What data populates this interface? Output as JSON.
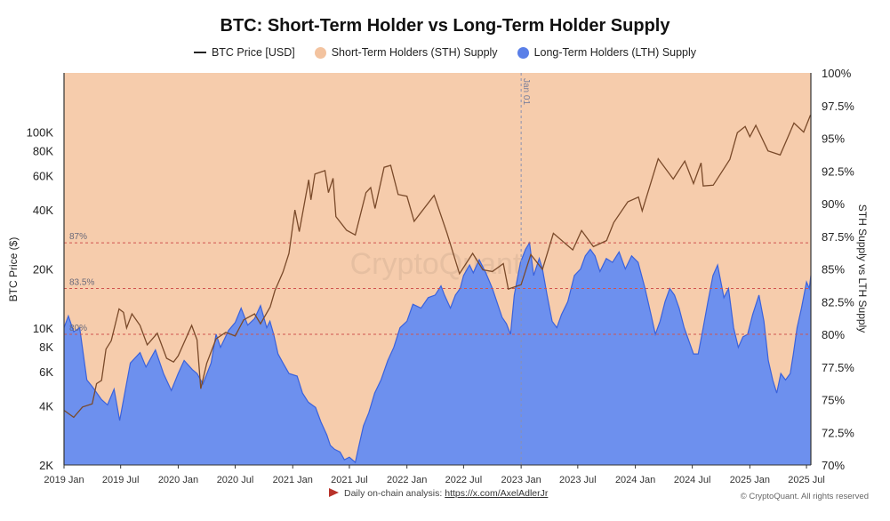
{
  "chart_data": {
    "type": "area",
    "title": "BTC: Short-Term Holder vs Long-Term Holder Supply",
    "y_left_label": "BTC Price ($)",
    "y_right_label": "STH Supply vs LTH Supply",
    "y_left_scale": "log",
    "y_left_range": [
      2000,
      200000
    ],
    "y_left_ticks": [
      {
        "v": 2000,
        "label": "2K"
      },
      {
        "v": 4000,
        "label": "4K"
      },
      {
        "v": 6000,
        "label": "6K"
      },
      {
        "v": 8000,
        "label": "8K"
      },
      {
        "v": 10000,
        "label": "10K"
      },
      {
        "v": 20000,
        "label": "20K"
      },
      {
        "v": 40000,
        "label": "40K"
      },
      {
        "v": 60000,
        "label": "60K"
      },
      {
        "v": 80000,
        "label": "80K"
      },
      {
        "v": 100000,
        "label": "100K"
      }
    ],
    "y_right_range": [
      70,
      100
    ],
    "y_right_ticks": [
      {
        "v": 70,
        "label": "70%"
      },
      {
        "v": 72.5,
        "label": "72.5%"
      },
      {
        "v": 75,
        "label": "75%"
      },
      {
        "v": 77.5,
        "label": "77.5%"
      },
      {
        "v": 80,
        "label": "80%"
      },
      {
        "v": 82.5,
        "label": "82.5%"
      },
      {
        "v": 85,
        "label": "85%"
      },
      {
        "v": 87.5,
        "label": "87.5%"
      },
      {
        "v": 90,
        "label": "90%"
      },
      {
        "v": 92.5,
        "label": "92.5%"
      },
      {
        "v": 95,
        "label": "95%"
      },
      {
        "v": 97.5,
        "label": "97.5%"
      },
      {
        "v": 100,
        "label": "100%"
      }
    ],
    "x_range": [
      "2019-01-01",
      "2025-07-15"
    ],
    "x_ticks": [
      {
        "date": "2019-01-01",
        "label": "2019 Jan"
      },
      {
        "date": "2019-07-01",
        "label": "2019 Jul"
      },
      {
        "date": "2020-01-01",
        "label": "2020 Jan"
      },
      {
        "date": "2020-07-01",
        "label": "2020 Jul"
      },
      {
        "date": "2021-01-01",
        "label": "2021 Jan"
      },
      {
        "date": "2021-07-01",
        "label": "2021 Jul"
      },
      {
        "date": "2022-01-01",
        "label": "2022 Jan"
      },
      {
        "date": "2022-07-01",
        "label": "2022 Jul"
      },
      {
        "date": "2023-01-01",
        "label": "2023 Jan"
      },
      {
        "date": "2023-07-01",
        "label": "2023 Jul"
      },
      {
        "date": "2024-01-01",
        "label": "2024 Jan"
      },
      {
        "date": "2024-07-01",
        "label": "2024 Jul"
      },
      {
        "date": "2025-01-01",
        "label": "2025 Jan"
      },
      {
        "date": "2025-07-01",
        "label": "2025 Jul"
      }
    ],
    "reference_lines": [
      {
        "v": 87,
        "label": "87%"
      },
      {
        "v": 83.5,
        "label": "83.5%"
      },
      {
        "v": 80,
        "label": "80%"
      }
    ],
    "vertical_marker": {
      "date": "2023-01-01",
      "label": "Jan 01"
    },
    "series": [
      {
        "name": "BTC Price [USD]",
        "axis": "left",
        "style": "line",
        "color": "#222222",
        "points": [
          [
            "2019-01-01",
            3800
          ],
          [
            "2019-02-01",
            3500
          ],
          [
            "2019-03-01",
            3950
          ],
          [
            "2019-04-01",
            4100
          ],
          [
            "2019-04-15",
            5200
          ],
          [
            "2019-05-01",
            5400
          ],
          [
            "2019-05-15",
            7800
          ],
          [
            "2019-06-01",
            8600
          ],
          [
            "2019-06-26",
            12500
          ],
          [
            "2019-07-10",
            12000
          ],
          [
            "2019-07-20",
            10000
          ],
          [
            "2019-08-06",
            11800
          ],
          [
            "2019-09-01",
            10300
          ],
          [
            "2019-09-24",
            8200
          ],
          [
            "2019-10-26",
            9400
          ],
          [
            "2019-11-25",
            7000
          ],
          [
            "2019-12-17",
            6700
          ],
          [
            "2020-01-01",
            7200
          ],
          [
            "2020-02-13",
            10300
          ],
          [
            "2020-03-01",
            8700
          ],
          [
            "2020-03-13",
            4900
          ],
          [
            "2020-04-01",
            6600
          ],
          [
            "2020-05-01",
            8800
          ],
          [
            "2020-06-01",
            9500
          ],
          [
            "2020-07-01",
            9100
          ],
          [
            "2020-07-28",
            11000
          ],
          [
            "2020-09-01",
            11800
          ],
          [
            "2020-09-20",
            10500
          ],
          [
            "2020-10-21",
            12800
          ],
          [
            "2020-11-05",
            15500
          ],
          [
            "2020-12-01",
            19300
          ],
          [
            "2020-12-20",
            24000
          ],
          [
            "2021-01-08",
            40000
          ],
          [
            "2021-01-22",
            31000
          ],
          [
            "2021-02-21",
            57000
          ],
          [
            "2021-02-28",
            45000
          ],
          [
            "2021-03-13",
            61000
          ],
          [
            "2021-04-14",
            63500
          ],
          [
            "2021-04-25",
            49000
          ],
          [
            "2021-05-10",
            58000
          ],
          [
            "2021-05-19",
            37000
          ],
          [
            "2021-06-22",
            31500
          ],
          [
            "2021-07-20",
            29800
          ],
          [
            "2021-08-23",
            49000
          ],
          [
            "2021-09-07",
            52000
          ],
          [
            "2021-09-21",
            40700
          ],
          [
            "2021-10-20",
            66000
          ],
          [
            "2021-11-10",
            67500
          ],
          [
            "2021-12-04",
            48000
          ],
          [
            "2022-01-01",
            47000
          ],
          [
            "2022-01-24",
            35000
          ],
          [
            "2022-03-29",
            47500
          ],
          [
            "2022-05-09",
            30500
          ],
          [
            "2022-06-18",
            18900
          ],
          [
            "2022-07-30",
            24000
          ],
          [
            "2022-09-01",
            19800
          ],
          [
            "2022-10-01",
            19400
          ],
          [
            "2022-11-05",
            21300
          ],
          [
            "2022-11-21",
            15800
          ],
          [
            "2023-01-01",
            16600
          ],
          [
            "2023-02-01",
            23700
          ],
          [
            "2023-03-10",
            19900
          ],
          [
            "2023-04-14",
            30400
          ],
          [
            "2023-06-15",
            25000
          ],
          [
            "2023-07-13",
            31400
          ],
          [
            "2023-08-20",
            26000
          ],
          [
            "2023-10-01",
            27900
          ],
          [
            "2023-10-24",
            34500
          ],
          [
            "2023-12-08",
            44000
          ],
          [
            "2024-01-11",
            46500
          ],
          [
            "2024-01-23",
            39500
          ],
          [
            "2024-03-14",
            73000
          ],
          [
            "2024-05-01",
            57500
          ],
          [
            "2024-06-07",
            71000
          ],
          [
            "2024-07-05",
            54500
          ],
          [
            "2024-07-29",
            69500
          ],
          [
            "2024-08-05",
            53000
          ],
          [
            "2024-09-06",
            53500
          ],
          [
            "2024-10-29",
            72500
          ],
          [
            "2024-11-22",
            99000
          ],
          [
            "2024-12-17",
            106500
          ],
          [
            "2025-01-01",
            94500
          ],
          [
            "2025-01-20",
            108000
          ],
          [
            "2025-02-28",
            80000
          ],
          [
            "2025-04-08",
            76300
          ],
          [
            "2025-05-22",
            111000
          ],
          [
            "2025-06-22",
            99800
          ],
          [
            "2025-07-14",
            122000
          ]
        ]
      },
      {
        "name": "Short-Term Holders (STH) Supply",
        "axis": "right",
        "style": "area",
        "color": "#f6ccac",
        "fill": "remainder above LTH to 100%"
      },
      {
        "name": "Long-Term Holders (LTH) Supply",
        "axis": "right",
        "style": "area",
        "color": "#5a7fe8",
        "points": [
          [
            "2019-01-01",
            80.5
          ],
          [
            "2019-01-15",
            81.4
          ],
          [
            "2019-02-01",
            80.2
          ],
          [
            "2019-02-20",
            80.5
          ],
          [
            "2019-03-15",
            76.5
          ],
          [
            "2019-04-01",
            76.0
          ],
          [
            "2019-05-01",
            75.0
          ],
          [
            "2019-05-20",
            74.6
          ],
          [
            "2019-06-10",
            75.8
          ],
          [
            "2019-06-28",
            73.4
          ],
          [
            "2019-08-01",
            77.8
          ],
          [
            "2019-09-01",
            78.6
          ],
          [
            "2019-09-20",
            77.5
          ],
          [
            "2019-10-20",
            78.8
          ],
          [
            "2019-11-15",
            77.0
          ],
          [
            "2019-12-10",
            75.7
          ],
          [
            "2020-01-01",
            77.0
          ],
          [
            "2020-01-20",
            78.0
          ],
          [
            "2020-02-15",
            77.3
          ],
          [
            "2020-03-01",
            77.0
          ],
          [
            "2020-03-20",
            76.2
          ],
          [
            "2020-04-15",
            77.8
          ],
          [
            "2020-05-01",
            80.0
          ],
          [
            "2020-05-15",
            79.0
          ],
          [
            "2020-06-10",
            80.3
          ],
          [
            "2020-07-01",
            80.9
          ],
          [
            "2020-07-20",
            82.0
          ],
          [
            "2020-08-10",
            80.7
          ],
          [
            "2020-09-01",
            81.2
          ],
          [
            "2020-09-20",
            82.2
          ],
          [
            "2020-10-10",
            80.5
          ],
          [
            "2020-10-20",
            81.0
          ],
          [
            "2020-11-01",
            80.0
          ],
          [
            "2020-11-15",
            78.5
          ],
          [
            "2020-12-01",
            77.8
          ],
          [
            "2020-12-20",
            77.0
          ],
          [
            "2021-01-15",
            76.8
          ],
          [
            "2021-02-01",
            75.5
          ],
          [
            "2021-02-20",
            74.8
          ],
          [
            "2021-03-15",
            74.4
          ],
          [
            "2021-04-01",
            73.3
          ],
          [
            "2021-04-20",
            72.3
          ],
          [
            "2021-05-01",
            71.5
          ],
          [
            "2021-05-15",
            71.2
          ],
          [
            "2021-06-01",
            71.0
          ],
          [
            "2021-06-15",
            70.4
          ],
          [
            "2021-07-01",
            70.6
          ],
          [
            "2021-07-20",
            70.2
          ],
          [
            "2021-08-01",
            71.5
          ],
          [
            "2021-08-15",
            73.0
          ],
          [
            "2021-09-01",
            74.0
          ],
          [
            "2021-09-20",
            75.5
          ],
          [
            "2021-10-10",
            76.5
          ],
          [
            "2021-11-01",
            78.0
          ],
          [
            "2021-11-20",
            79.0
          ],
          [
            "2021-12-10",
            80.5
          ],
          [
            "2022-01-01",
            81.0
          ],
          [
            "2022-01-20",
            82.3
          ],
          [
            "2022-02-15",
            82.0
          ],
          [
            "2022-03-10",
            82.8
          ],
          [
            "2022-04-01",
            83.0
          ],
          [
            "2022-04-20",
            83.7
          ],
          [
            "2022-05-01",
            83.0
          ],
          [
            "2022-05-20",
            82.0
          ],
          [
            "2022-06-05",
            83.0
          ],
          [
            "2022-06-20",
            83.5
          ],
          [
            "2022-07-01",
            84.5
          ],
          [
            "2022-07-20",
            85.3
          ],
          [
            "2022-08-01",
            84.7
          ],
          [
            "2022-08-20",
            85.7
          ],
          [
            "2022-09-10",
            84.7
          ],
          [
            "2022-10-01",
            83.5
          ],
          [
            "2022-11-01",
            81.3
          ],
          [
            "2022-11-15",
            80.8
          ],
          [
            "2022-11-28",
            80.0
          ],
          [
            "2022-12-10",
            83.0
          ],
          [
            "2022-12-30",
            85.5
          ],
          [
            "2023-01-15",
            86.5
          ],
          [
            "2023-01-28",
            87.0
          ],
          [
            "2023-02-10",
            84.5
          ],
          [
            "2023-02-28",
            85.8
          ],
          [
            "2023-03-10",
            85.0
          ],
          [
            "2023-03-25",
            83.0
          ],
          [
            "2023-04-10",
            81.0
          ],
          [
            "2023-04-25",
            80.5
          ],
          [
            "2023-05-10",
            81.5
          ],
          [
            "2023-05-30",
            82.5
          ],
          [
            "2023-06-20",
            84.5
          ],
          [
            "2023-07-10",
            85.0
          ],
          [
            "2023-07-25",
            86.0
          ],
          [
            "2023-08-10",
            86.5
          ],
          [
            "2023-08-25",
            86.0
          ],
          [
            "2023-09-10",
            84.8
          ],
          [
            "2023-09-30",
            85.8
          ],
          [
            "2023-10-20",
            85.5
          ],
          [
            "2023-11-10",
            86.3
          ],
          [
            "2023-11-30",
            85.0
          ],
          [
            "2023-12-20",
            86.0
          ],
          [
            "2024-01-10",
            85.5
          ],
          [
            "2024-02-01",
            83.5
          ],
          [
            "2024-02-20",
            81.5
          ],
          [
            "2024-03-05",
            80.0
          ],
          [
            "2024-03-20",
            81.0
          ],
          [
            "2024-04-05",
            82.5
          ],
          [
            "2024-04-20",
            83.5
          ],
          [
            "2024-05-05",
            83.0
          ],
          [
            "2024-05-20",
            82.0
          ],
          [
            "2024-06-05",
            80.5
          ],
          [
            "2024-06-20",
            79.5
          ],
          [
            "2024-07-05",
            78.5
          ],
          [
            "2024-07-20",
            78.5
          ],
          [
            "2024-08-05",
            80.5
          ],
          [
            "2024-08-20",
            82.5
          ],
          [
            "2024-09-05",
            84.5
          ],
          [
            "2024-09-20",
            85.3
          ],
          [
            "2024-10-10",
            82.8
          ],
          [
            "2024-10-25",
            83.5
          ],
          [
            "2024-11-10",
            80.5
          ],
          [
            "2024-11-25",
            79.0
          ],
          [
            "2024-12-10",
            79.8
          ],
          [
            "2024-12-25",
            80.0
          ],
          [
            "2025-01-10",
            81.5
          ],
          [
            "2025-01-30",
            83.0
          ],
          [
            "2025-02-15",
            81.0
          ],
          [
            "2025-03-01",
            78.0
          ],
          [
            "2025-03-15",
            76.5
          ],
          [
            "2025-03-28",
            75.5
          ],
          [
            "2025-04-10",
            77.0
          ],
          [
            "2025-04-25",
            76.5
          ],
          [
            "2025-05-10",
            77.0
          ],
          [
            "2025-05-20",
            78.5
          ],
          [
            "2025-06-01",
            80.5
          ],
          [
            "2025-06-15",
            82.0
          ],
          [
            "2025-07-01",
            84.0
          ],
          [
            "2025-07-10",
            83.5
          ],
          [
            "2025-07-15",
            84.5
          ]
        ]
      }
    ],
    "legend_placement": "top-center"
  },
  "footer": {
    "text": "Daily on-chain analysis:",
    "link": "https://x.com/AxelAdlerJr",
    "copyright": "© CryptoQuant. All rights reserved"
  },
  "watermark": "CryptoQuant",
  "colors": {
    "sth_fill": "#f6ccac",
    "lth_fill": "#6d90ee",
    "lth_line": "#3a62dc",
    "price_line": "#222222",
    "ref_line": "#d0534f"
  }
}
